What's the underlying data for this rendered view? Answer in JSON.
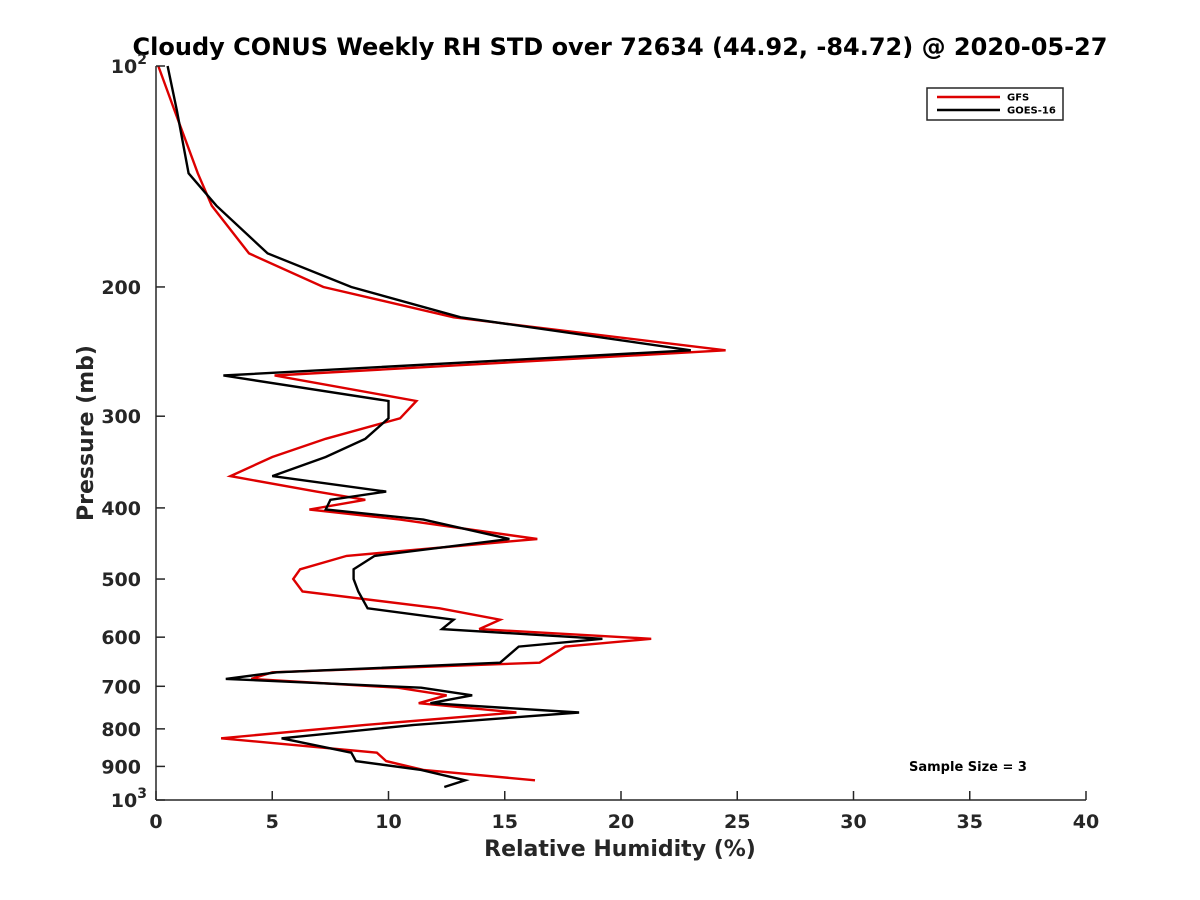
{
  "chart_data": {
    "type": "line",
    "title": "Cloudy CONUS Weekly RH STD over 72634 (44.92, -84.72) @ 2020-05-27",
    "xlabel": "Relative Humidity (%)",
    "ylabel": "Pressure (mb)",
    "xlim": [
      0,
      40
    ],
    "ylim": [
      100,
      1000
    ],
    "y_scale": "log",
    "y_reversed": true,
    "x_ticks": [
      0,
      5,
      10,
      15,
      20,
      25,
      30,
      35,
      40
    ],
    "y_ticks": [
      {
        "value": 100,
        "base": "10",
        "exp": "2"
      },
      {
        "value": 200,
        "label": "200"
      },
      {
        "value": 300,
        "label": "300"
      },
      {
        "value": 400,
        "label": "400"
      },
      {
        "value": 500,
        "label": "500"
      },
      {
        "value": 600,
        "label": "600"
      },
      {
        "value": 700,
        "label": "700"
      },
      {
        "value": 800,
        "label": "800"
      },
      {
        "value": 900,
        "label": "900"
      },
      {
        "value": 1000,
        "base": "10",
        "exp": "3"
      }
    ],
    "grid": false,
    "legend_position": "top-right",
    "annotation": "Sample Size = 3",
    "series": [
      {
        "name": "GFS",
        "color": "#dd0000",
        "points": [
          [
            0.1,
            100
          ],
          [
            0.8,
            115
          ],
          [
            1.8,
            140
          ],
          [
            2.4,
            155
          ],
          [
            4.0,
            180
          ],
          [
            7.2,
            200
          ],
          [
            12.8,
            220
          ],
          [
            24.5,
            244
          ],
          [
            5.1,
            264
          ],
          [
            11.2,
            286
          ],
          [
            10.5,
            302
          ],
          [
            7.3,
            322
          ],
          [
            5.0,
            341
          ],
          [
            3.2,
            362
          ],
          [
            6.9,
            380
          ],
          [
            9.0,
            390
          ],
          [
            6.6,
            402
          ],
          [
            10.5,
            415
          ],
          [
            16.4,
            441
          ],
          [
            8.2,
            465
          ],
          [
            6.2,
            485
          ],
          [
            5.9,
            500
          ],
          [
            6.3,
            520
          ],
          [
            12.2,
            548
          ],
          [
            14.8,
            568
          ],
          [
            13.9,
            585
          ],
          [
            21.3,
            603
          ],
          [
            17.6,
            618
          ],
          [
            16.5,
            650
          ],
          [
            5.0,
            670
          ],
          [
            4.1,
            684
          ],
          [
            10.4,
            703
          ],
          [
            12.5,
            720
          ],
          [
            11.3,
            738
          ],
          [
            15.5,
            760
          ],
          [
            9.0,
            790
          ],
          [
            2.8,
            824
          ],
          [
            9.5,
            862
          ],
          [
            9.9,
            885
          ],
          [
            11.5,
            910
          ],
          [
            16.3,
            940
          ]
        ]
      },
      {
        "name": "GOES-16",
        "color": "#000000",
        "points": [
          [
            0.5,
            100
          ],
          [
            0.9,
            115
          ],
          [
            1.4,
            140
          ],
          [
            2.6,
            155
          ],
          [
            4.8,
            180
          ],
          [
            8.4,
            200
          ],
          [
            13.1,
            220
          ],
          [
            23.0,
            244
          ],
          [
            2.9,
            264
          ],
          [
            10.0,
            286
          ],
          [
            10.0,
            302
          ],
          [
            9.0,
            322
          ],
          [
            7.3,
            341
          ],
          [
            5.0,
            362
          ],
          [
            9.9,
            380
          ],
          [
            7.5,
            390
          ],
          [
            7.3,
            402
          ],
          [
            11.5,
            415
          ],
          [
            15.2,
            441
          ],
          [
            9.4,
            465
          ],
          [
            8.5,
            485
          ],
          [
            8.5,
            500
          ],
          [
            8.7,
            520
          ],
          [
            9.1,
            548
          ],
          [
            12.8,
            568
          ],
          [
            12.3,
            585
          ],
          [
            19.2,
            603
          ],
          [
            15.6,
            618
          ],
          [
            14.8,
            650
          ],
          [
            5.2,
            670
          ],
          [
            3.0,
            684
          ],
          [
            11.4,
            703
          ],
          [
            13.6,
            720
          ],
          [
            11.8,
            738
          ],
          [
            18.2,
            760
          ],
          [
            11.1,
            790
          ],
          [
            5.4,
            824
          ],
          [
            8.4,
            862
          ],
          [
            8.6,
            885
          ],
          [
            11.4,
            910
          ],
          [
            13.3,
            940
          ],
          [
            12.4,
            960
          ]
        ]
      }
    ]
  }
}
